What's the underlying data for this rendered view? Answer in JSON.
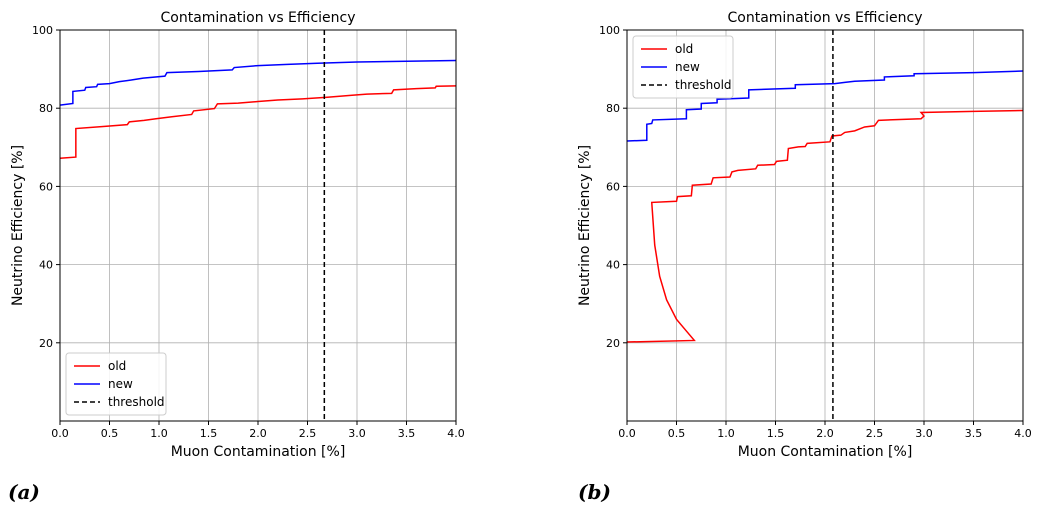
{
  "panel_labels": [
    "(a)",
    "(b)"
  ],
  "chart_data": [
    {
      "type": "line",
      "title": "Contamination vs Efficiency",
      "xlabel": "Muon Contamination [%]",
      "ylabel": "Neutrino Efficiency [%]",
      "xlim": [
        0,
        4.0
      ],
      "ylim": [
        0,
        100
      ],
      "x_ticks": [
        "0.0",
        "0.5",
        "1.0",
        "1.5",
        "2.0",
        "2.5",
        "3.0",
        "3.5",
        "4.0"
      ],
      "y_ticks": [
        "20",
        "40",
        "60",
        "80",
        "100"
      ],
      "y_tick_values": [
        20,
        40,
        60,
        80,
        100
      ],
      "grid": true,
      "legend_position": "bottom-left",
      "legend": [
        "old",
        "new",
        "threshold"
      ],
      "threshold": 2.67,
      "series": [
        {
          "name": "old",
          "color": "#ff0000",
          "points": [
            [
              0.0,
              67.2
            ],
            [
              0.16,
              67.5
            ],
            [
              0.16,
              74.8
            ],
            [
              0.42,
              75.3
            ],
            [
              0.68,
              75.8
            ],
            [
              0.7,
              76.5
            ],
            [
              0.85,
              76.9
            ],
            [
              0.97,
              77.3
            ],
            [
              1.13,
              77.8
            ],
            [
              1.33,
              78.4
            ],
            [
              1.35,
              79.3
            ],
            [
              1.56,
              79.9
            ],
            [
              1.59,
              81.1
            ],
            [
              1.8,
              81.3
            ],
            [
              2.0,
              81.7
            ],
            [
              2.2,
              82.1
            ],
            [
              2.45,
              82.4
            ],
            [
              2.7,
              82.8
            ],
            [
              2.95,
              83.3
            ],
            [
              3.1,
              83.6
            ],
            [
              3.35,
              83.8
            ],
            [
              3.37,
              84.7
            ],
            [
              3.6,
              85.0
            ],
            [
              3.79,
              85.2
            ],
            [
              3.8,
              85.6
            ],
            [
              4.0,
              85.7
            ]
          ]
        },
        {
          "name": "new",
          "color": "#0000ff",
          "points": [
            [
              0.0,
              80.8
            ],
            [
              0.13,
              81.2
            ],
            [
              0.13,
              84.3
            ],
            [
              0.25,
              84.6
            ],
            [
              0.26,
              85.3
            ],
            [
              0.37,
              85.5
            ],
            [
              0.38,
              86.1
            ],
            [
              0.5,
              86.3
            ],
            [
              0.6,
              86.8
            ],
            [
              0.72,
              87.2
            ],
            [
              0.84,
              87.7
            ],
            [
              1.06,
              88.2
            ],
            [
              1.08,
              89.1
            ],
            [
              1.4,
              89.4
            ],
            [
              1.74,
              89.8
            ],
            [
              1.76,
              90.4
            ],
            [
              2.0,
              90.9
            ],
            [
              2.3,
              91.2
            ],
            [
              2.6,
              91.5
            ],
            [
              3.0,
              91.8
            ],
            [
              3.5,
              92.0
            ],
            [
              4.0,
              92.2
            ]
          ]
        }
      ]
    },
    {
      "type": "line",
      "title": "Contamination vs Efficiency",
      "xlabel": "Muon Contamination [%]",
      "ylabel": "Neutrino Efficiency [%]",
      "xlim": [
        0,
        4.0
      ],
      "ylim": [
        0,
        100
      ],
      "x_ticks": [
        "0.0",
        "0.5",
        "1.0",
        "1.5",
        "2.0",
        "2.5",
        "3.0",
        "3.5",
        "4.0"
      ],
      "y_ticks": [
        "20",
        "40",
        "60",
        "80",
        "100"
      ],
      "y_tick_values": [
        20,
        40,
        60,
        80,
        100
      ],
      "grid": true,
      "legend_position": "top-left",
      "legend": [
        "old",
        "new",
        "threshold"
      ],
      "threshold": 2.08,
      "series": [
        {
          "name": "old",
          "color": "#ff0000",
          "points": [
            [
              0.0,
              20.2
            ],
            [
              0.68,
              20.6
            ],
            [
              0.6,
              23.0
            ],
            [
              0.5,
              26.0
            ],
            [
              0.4,
              31.0
            ],
            [
              0.33,
              37.0
            ],
            [
              0.28,
              45.0
            ],
            [
              0.25,
              55.9
            ],
            [
              0.5,
              56.2
            ],
            [
              0.51,
              57.4
            ],
            [
              0.65,
              57.6
            ],
            [
              0.66,
              60.3
            ],
            [
              0.85,
              60.6
            ],
            [
              0.87,
              62.2
            ],
            [
              1.04,
              62.4
            ],
            [
              1.06,
              63.7
            ],
            [
              1.12,
              64.1
            ],
            [
              1.3,
              64.5
            ],
            [
              1.32,
              65.4
            ],
            [
              1.49,
              65.6
            ],
            [
              1.51,
              66.4
            ],
            [
              1.62,
              66.7
            ],
            [
              1.63,
              69.7
            ],
            [
              1.73,
              70.1
            ],
            [
              1.8,
              70.2
            ],
            [
              1.82,
              71.0
            ],
            [
              2.05,
              71.4
            ],
            [
              2.07,
              72.9
            ],
            [
              2.16,
              73.1
            ],
            [
              2.2,
              73.8
            ],
            [
              2.3,
              74.2
            ],
            [
              2.4,
              75.2
            ],
            [
              2.5,
              75.5
            ],
            [
              2.54,
              76.9
            ],
            [
              2.97,
              77.3
            ],
            [
              3.0,
              78.0
            ],
            [
              2.97,
              78.9
            ],
            [
              3.5,
              79.2
            ],
            [
              4.0,
              79.4
            ]
          ]
        },
        {
          "name": "new",
          "color": "#0000ff",
          "points": [
            [
              0.0,
              71.6
            ],
            [
              0.2,
              71.8
            ],
            [
              0.2,
              75.9
            ],
            [
              0.25,
              76.1
            ],
            [
              0.26,
              77.0
            ],
            [
              0.6,
              77.3
            ],
            [
              0.6,
              79.6
            ],
            [
              0.75,
              79.8
            ],
            [
              0.75,
              81.2
            ],
            [
              0.91,
              81.4
            ],
            [
              0.91,
              82.3
            ],
            [
              1.23,
              82.6
            ],
            [
              1.23,
              84.7
            ],
            [
              1.7,
              85.1
            ],
            [
              1.7,
              86.0
            ],
            [
              2.1,
              86.3
            ],
            [
              2.2,
              86.6
            ],
            [
              2.3,
              86.9
            ],
            [
              2.6,
              87.2
            ],
            [
              2.6,
              88.0
            ],
            [
              2.9,
              88.3
            ],
            [
              2.9,
              88.8
            ],
            [
              3.5,
              89.1
            ],
            [
              4.0,
              89.5
            ]
          ]
        }
      ]
    }
  ]
}
